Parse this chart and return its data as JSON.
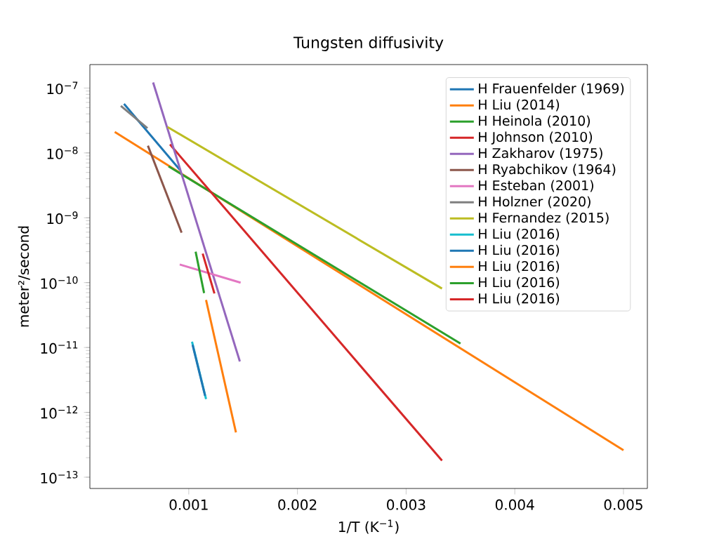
{
  "chart_data": {
    "type": "line",
    "title": "Tungsten diffusivity",
    "xlabel": "1/T (K$^{−1}$)",
    "ylabel": "meter²/second",
    "log": "y",
    "legend": "top right",
    "marker": "none",
    "line_style": "solid",
    "xlim": [
      9e-05,
      0.00522
    ],
    "ylim": [
      6.7e-14,
      2.3e-07
    ],
    "xticks": [
      0.001,
      0.002,
      0.003,
      0.004,
      0.005
    ],
    "yticks": [
      {
        "value": 1e-13,
        "label": "10$^{−13}$"
      },
      {
        "value": 1e-12,
        "label": "10$^{−12}$"
      },
      {
        "value": 1e-11,
        "label": "10$^{−11}$"
      },
      {
        "value": 1e-10,
        "label": "10$^{−10}$"
      },
      {
        "value": 1e-09,
        "label": "10$^{−9}$"
      },
      {
        "value": 1e-08,
        "label": "10$^{−8}$"
      },
      {
        "value": 1e-07,
        "label": "10$^{−7}$"
      }
    ],
    "series": [
      {
        "name": "H Frauenfelder (1969)",
        "color": "#1f77b4",
        "x": [
          0.000404,
          0.000921
        ],
        "values": [
          5.7e-08,
          5.4e-09
        ]
      },
      {
        "name": "H Liu (2014)",
        "color": "#ff7f0e",
        "x": [
          0.000319,
          0.005
        ],
        "values": [
          2.1e-08,
          2.6e-13
        ]
      },
      {
        "name": "H Heinola (2010)",
        "color": "#2ca02c",
        "x": [
          0.000814,
          0.0035
        ],
        "values": [
          6.2e-09,
          1.15e-11
        ]
      },
      {
        "name": "H Johnson (2010)",
        "color": "#d62728",
        "x": [
          0.000827,
          0.00333
        ],
        "values": [
          1.35e-08,
          1.8e-13
        ]
      },
      {
        "name": "H Zakharov (1975)",
        "color": "#9467bd",
        "x": [
          0.000672,
          0.00147
        ],
        "values": [
          1.22e-07,
          6.1e-12
        ]
      },
      {
        "name": "H Ryabchikov (1964)",
        "color": "#8c564b",
        "x": [
          0.000624,
          0.000934
        ],
        "values": [
          1.29e-08,
          5.9e-10
        ]
      },
      {
        "name": "H Esteban (2001)",
        "color": "#e377c2",
        "x": [
          0.000917,
          0.001477
        ],
        "values": [
          1.9e-10,
          1e-10
        ]
      },
      {
        "name": "H Holzner (2020)",
        "color": "#7f7f7f",
        "x": [
          0.000375,
          0.00062
        ],
        "values": [
          5.3e-08,
          2.4e-08
        ]
      },
      {
        "name": "H Fernandez (2015)",
        "color": "#bcbd22",
        "x": [
          0.000805,
          0.00333
        ],
        "values": [
          2.5e-08,
          8.1e-11
        ]
      },
      {
        "name": "H Liu (2016)",
        "color": "#17becf",
        "x": [
          0.00103,
          0.001159
        ],
        "values": [
          1.23e-11,
          1.6e-12
        ]
      },
      {
        "name": "H Liu (2016)",
        "color": "#1f77b4",
        "x": [
          0.001035,
          0.00115
        ],
        "values": [
          1.1e-11,
          1.8e-12
        ]
      },
      {
        "name": "H Liu (2016)",
        "color": "#ff7f0e",
        "x": [
          0.001159,
          0.001434
        ],
        "values": [
          5.4e-11,
          4.9e-13
        ]
      },
      {
        "name": "H Liu (2016)",
        "color": "#2ca02c",
        "x": [
          0.001063,
          0.001141
        ],
        "values": [
          3e-10,
          6.9e-11
        ]
      },
      {
        "name": "H Liu (2016)",
        "color": "#d62728",
        "x": [
          0.001128,
          0.001236
        ],
        "values": [
          2.8e-10,
          6.8e-11
        ]
      }
    ]
  }
}
